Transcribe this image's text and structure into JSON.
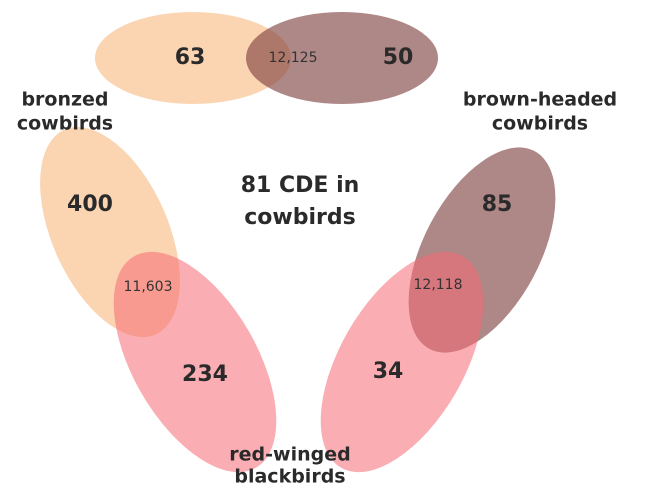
{
  "center_label": [
    "81 CDE in",
    "cowbirds"
  ],
  "groups": [
    {
      "lines": [
        "bronzed",
        "cowbirds"
      ]
    },
    {
      "lines": [
        "brown-headed",
        "cowbirds"
      ]
    },
    {
      "lines": [
        "red-winged",
        "blackbirds"
      ]
    }
  ],
  "pairs": [
    {
      "left_only": "63",
      "shared": "12,125",
      "right_only": "50"
    },
    {
      "left_only": "400",
      "shared": "11,603",
      "right_only": "234"
    },
    {
      "left_only": "85",
      "shared": "12,118",
      "right_only": "34"
    }
  ]
}
